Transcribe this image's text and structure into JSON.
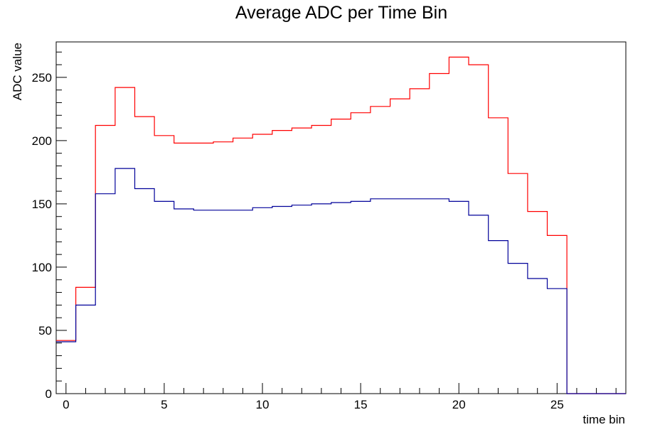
{
  "chart_data": {
    "type": "line",
    "title": "Average ADC per Time Bin",
    "xlabel": "time bin",
    "ylabel": "ADC value",
    "xlim": [
      -0.5,
      28.5
    ],
    "ylim": [
      0,
      278
    ],
    "grid": false,
    "x_major_ticks": [
      0,
      5,
      10,
      15,
      20,
      25
    ],
    "y_major_ticks": [
      0,
      50,
      100,
      150,
      200,
      250
    ],
    "bins": [
      0,
      1,
      2,
      3,
      4,
      5,
      6,
      7,
      8,
      9,
      10,
      11,
      12,
      13,
      14,
      15,
      16,
      17,
      18,
      19,
      20,
      21,
      22,
      23,
      24,
      25,
      26,
      27,
      28
    ],
    "series": [
      {
        "color": "#ff0000",
        "values": [
          42,
          84,
          212,
          242,
          219,
          204,
          198,
          198,
          199,
          202,
          205,
          208,
          210,
          212,
          217,
          222,
          227,
          233,
          241,
          253,
          266,
          260,
          218,
          174,
          144,
          125,
          0,
          0,
          0
        ]
      },
      {
        "color": "#000099",
        "values": [
          41,
          70,
          158,
          178,
          162,
          152,
          146,
          145,
          145,
          145,
          147,
          148,
          149,
          150,
          151,
          152,
          154,
          154,
          154,
          154,
          152,
          141,
          121,
          103,
          91,
          83,
          0,
          0,
          0
        ]
      }
    ]
  }
}
